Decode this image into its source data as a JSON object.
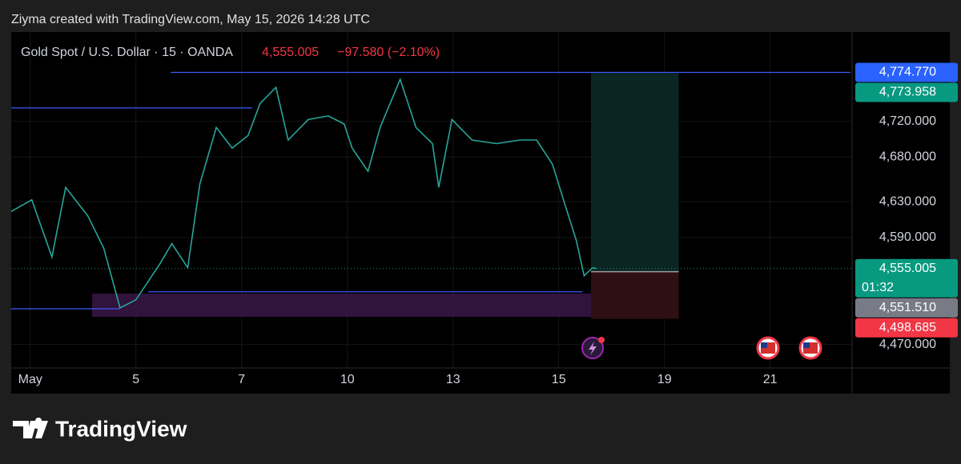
{
  "header": "Ziyma created with TradingView.com, May 15, 2026 14:28 UTC",
  "chart_data": {
    "type": "line",
    "symbol": "Gold Spot / U.S. Dollar · 15 · OANDA",
    "last_price": {
      "value": 4555.005,
      "label": "4,555.005"
    },
    "change": "−97.580 (−2.10%)",
    "color": "#26a69a",
    "x": [
      -0.36,
      0.03,
      0.41,
      0.67,
      1.09,
      1.39,
      1.7,
      2.0,
      2.45,
      2.68,
      2.98,
      3.21,
      3.52,
      3.82,
      4.12,
      4.35,
      4.65,
      4.88,
      5.26,
      5.64,
      5.94,
      6.09,
      6.39,
      6.62,
      7.0,
      7.3,
      7.61,
      7.73,
      7.98,
      8.36,
      8.82,
      9.27,
      9.58,
      9.88,
      10.11,
      10.33,
      10.48,
      10.64,
      10.71
    ],
    "values": [
      4619,
      4632,
      4568,
      4646,
      4614,
      4578,
      4511,
      4520,
      4560,
      4583,
      4556,
      4650,
      4713,
      4690,
      4704,
      4740,
      4758,
      4699,
      4722,
      4726,
      4717,
      4690,
      4664,
      4713,
      4767,
      4713,
      4695,
      4646,
      4722,
      4699,
      4695,
      4699,
      4699,
      4672,
      4628,
      4587,
      4547,
      4556,
      4555.005
    ],
    "xlim": [
      -0.36,
      15.52
    ],
    "xticks": [
      {
        "value": 0,
        "label": "May"
      },
      {
        "value": 2,
        "label": "5"
      },
      {
        "value": 4,
        "label": "7"
      },
      {
        "value": 6,
        "label": "10"
      },
      {
        "value": 8,
        "label": "13"
      },
      {
        "value": 10,
        "label": "15"
      },
      {
        "value": 12,
        "label": "19"
      },
      {
        "value": 14,
        "label": "21"
      }
    ],
    "ylim": [
      4415,
      4820
    ],
    "yticks": [
      {
        "value": 4470,
        "label": "4,470.000"
      },
      {
        "value": 4590,
        "label": "4,590.000"
      },
      {
        "value": 4630,
        "label": "4,630.000"
      },
      {
        "value": 4680,
        "label": "4,680.000"
      },
      {
        "value": 4720,
        "label": "4,720.000"
      }
    ],
    "grid": true,
    "levels": [
      {
        "value": 4774.77,
        "x": [
          2.66,
          15.52
        ],
        "color": "#3d5afe"
      },
      {
        "value": 4735,
        "x": [
          -0.36,
          4.2
        ],
        "color": "#3d5afe"
      },
      {
        "value": 4510,
        "x": [
          -0.36,
          1.7
        ],
        "color": "#3d5afe"
      },
      {
        "value": 4529,
        "x": [
          2.23,
          10.45
        ],
        "color": "#3d5afe"
      }
    ],
    "zone": {
      "range": [
        4501,
        4527
      ],
      "x": [
        1.17,
        10.64
      ],
      "color": "#3a1646"
    },
    "position": {
      "x": [
        10.61,
        12.27
      ],
      "target": 4773.958,
      "entry": 4551.51,
      "stop": 4498.685
    },
    "price_labels": [
      {
        "value": 4774.77,
        "label": "4,774.770",
        "color": "#2962ff"
      },
      {
        "value": 4773.958,
        "label": "4,773.958",
        "color": "#089981"
      },
      {
        "value": 4555.005,
        "label": "4,555.005",
        "color": "#089981",
        "sub": "01:32"
      },
      {
        "value": 4551.51,
        "label": "4,551.510",
        "color": "#787b86"
      },
      {
        "value": 4498.685,
        "label": "4,498.685",
        "color": "#f23645"
      }
    ]
  },
  "footer": {
    "brand": "TradingView"
  }
}
